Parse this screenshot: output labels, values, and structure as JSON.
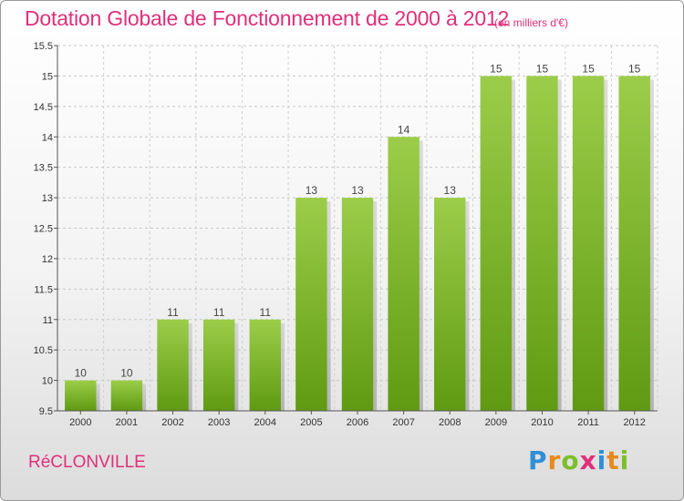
{
  "chart_data": {
    "type": "bar",
    "title": "Dotation Globale de Fonctionnement de 2000 à 2012",
    "unit_note": "(en milliers d'€)",
    "categories": [
      "2000",
      "2001",
      "2002",
      "2003",
      "2004",
      "2005",
      "2006",
      "2007",
      "2008",
      "2009",
      "2010",
      "2011",
      "2012"
    ],
    "values": [
      10,
      10,
      11,
      11,
      11,
      13,
      13,
      14,
      13,
      15,
      15,
      15,
      15
    ],
    "value_labels": [
      "10",
      "10",
      "11",
      "11",
      "11",
      "13",
      "13",
      "14",
      "13",
      "15",
      "15",
      "15",
      "15"
    ],
    "ylim": [
      9.5,
      15.5
    ],
    "yticks": [
      9.5,
      10,
      10.5,
      11,
      11.5,
      12,
      12.5,
      13,
      13.5,
      14,
      14.5,
      15,
      15.5
    ],
    "ytick_labels": [
      "9.5",
      "10",
      "10.5",
      "11",
      "11.5",
      "12",
      "12.5",
      "13",
      "13.5",
      "14",
      "14.5",
      "15",
      "15.5"
    ],
    "xlabel": "",
    "ylabel": "",
    "grid": true,
    "bar_color_top": "#9ccd4a",
    "bar_color_bottom": "#5f9a12"
  },
  "commune": "RéCLONVILLE",
  "logo": {
    "text": "Proxiti",
    "letters": [
      "P",
      "r",
      "o",
      "x",
      "i",
      "t",
      "i"
    ],
    "colors": [
      "#2f8fd6",
      "#e98a1e",
      "#7bbf2a",
      "#e0307a",
      "#2f8fd6",
      "#e98a1e",
      "#7bbf2a"
    ]
  }
}
